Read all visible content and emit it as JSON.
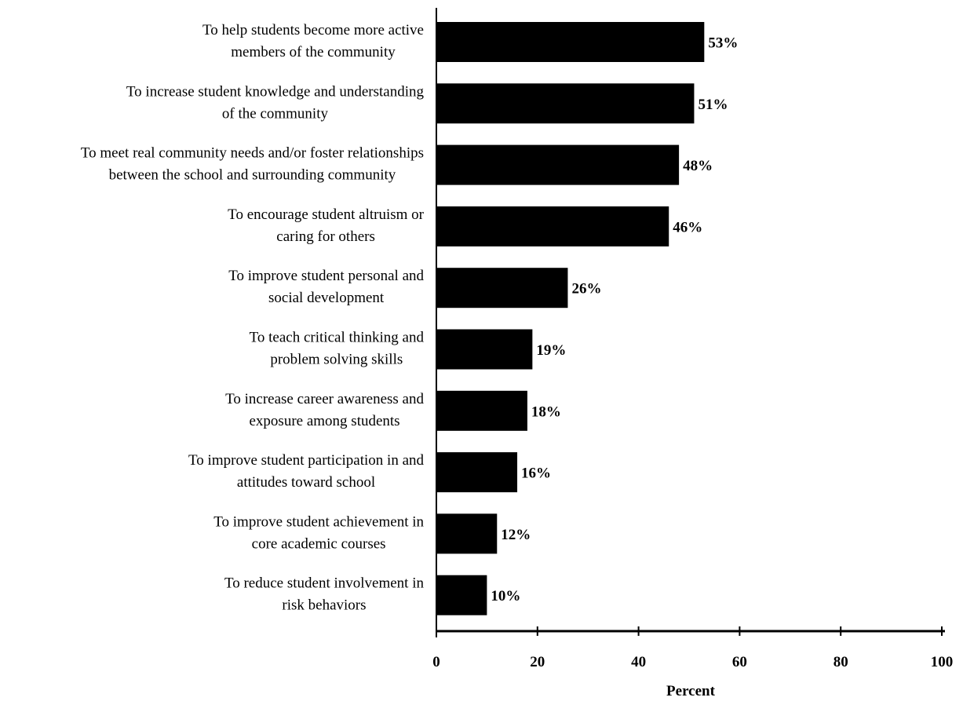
{
  "chart_data": {
    "type": "bar",
    "orientation": "horizontal",
    "title": "",
    "xlabel": "Percent",
    "ylabel": "",
    "xlim": [
      0,
      100
    ],
    "x_ticks": [
      0,
      20,
      40,
      60,
      80,
      100
    ],
    "grid": false,
    "legend": "none",
    "bar_color": "#000000",
    "categories": [
      [
        "To help students become more active",
        "members of the community"
      ],
      [
        "To increase student knowledge and understanding",
        "of the community"
      ],
      [
        "To meet real community needs and/or foster relationships",
        "between the school and surrounding community"
      ],
      [
        "To encourage student altruism or",
        "caring for others"
      ],
      [
        "To improve student personal and",
        "social development"
      ],
      [
        "To teach critical thinking and",
        "problem solving skills"
      ],
      [
        "To increase career awareness and",
        "exposure among students"
      ],
      [
        "To improve student participation in and",
        "attitudes toward school"
      ],
      [
        "To improve student achievement in",
        "core academic courses"
      ],
      [
        "To reduce student involvement in",
        "risk behaviors"
      ]
    ],
    "values": [
      53,
      51,
      48,
      46,
      26,
      19,
      18,
      16,
      12,
      10
    ],
    "value_labels": [
      "53%",
      "51%",
      "48%",
      "46%",
      "26%",
      "19%",
      "18%",
      "16%",
      "12%",
      "10%"
    ]
  }
}
